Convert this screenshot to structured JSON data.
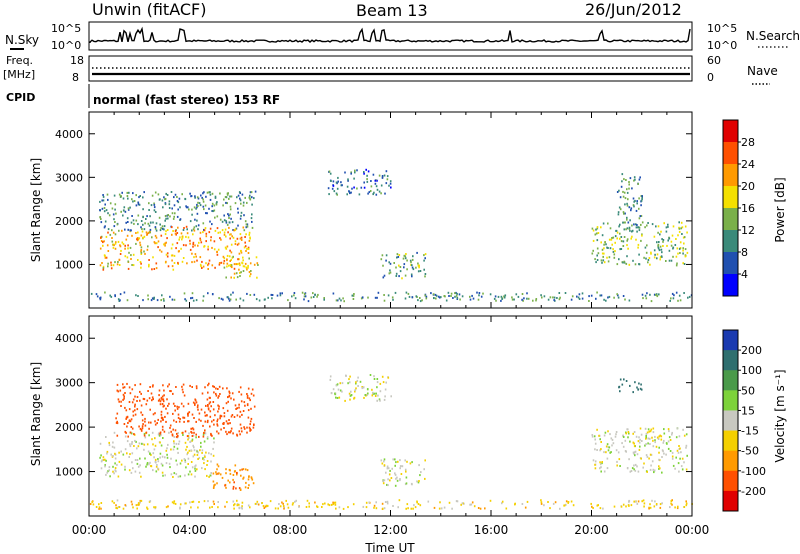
{
  "header": {
    "station": "Unwin (fitACF)",
    "beam": "Beam 13",
    "date": "26/Jun/2012"
  },
  "params": {
    "nsky_label": "N.Sky",
    "nsearch_label": "N.Search",
    "freq_label_1": "Freq.",
    "freq_label_2": "[MHz]",
    "cpid_label": "CPID",
    "nave_label": "Nave",
    "nsky_ticks": [
      "10^5",
      "10^0"
    ],
    "nsearch_ticks": [
      "10^5",
      "10^0"
    ],
    "freq_ticks": [
      "18",
      "8"
    ],
    "nave_ticks": [
      "60",
      "0"
    ],
    "mode_text": "normal (fast stereo) 153 RF"
  },
  "chart_data": [
    {
      "type": "heatmap",
      "panel": "power",
      "ylabel": "Slant Range [km]",
      "xlim": [
        "00:00",
        "24:00"
      ],
      "ylim": [
        0,
        4500
      ],
      "y_ticks": [
        "1000",
        "2000",
        "3000",
        "4000"
      ],
      "colorbar_label": "Power [dB]",
      "colorbar_ticks": [
        "28",
        "24",
        "20",
        "16",
        "12",
        "8",
        "4"
      ],
      "colorbar_colors": [
        "#e00000",
        "#ff5000",
        "#ff9a00",
        "#f4e000",
        "#7ab04a",
        "#3a8a7a",
        "#2050b0",
        "#0000ff"
      ],
      "echo_regions": [
        {
          "t": [
            0.4,
            3.0
          ],
          "range_km": [
            900,
            1800
          ],
          "level_db": 20
        },
        {
          "t": [
            0.4,
            6.6
          ],
          "range_km": [
            1800,
            2700
          ],
          "level_db": 10
        },
        {
          "t": [
            3.0,
            6.4
          ],
          "range_km": [
            900,
            1900
          ],
          "level_db": 22
        },
        {
          "t": [
            5.2,
            6.7
          ],
          "range_km": [
            700,
            1200
          ],
          "level_db": 18
        },
        {
          "t": [
            9.5,
            12.0
          ],
          "range_km": [
            2600,
            3200
          ],
          "level_db": 8
        },
        {
          "t": [
            11.6,
            13.4
          ],
          "range_km": [
            700,
            1300
          ],
          "level_db": 12
        },
        {
          "t": [
            20.0,
            23.8
          ],
          "range_km": [
            1000,
            2000
          ],
          "level_db": 14
        },
        {
          "t": [
            21.0,
            22.0
          ],
          "range_km": [
            1800,
            3100
          ],
          "level_db": 10
        },
        {
          "t": [
            0.0,
            24.0
          ],
          "range_km": [
            180,
            380
          ],
          "level_db": 10
        }
      ]
    },
    {
      "type": "heatmap",
      "panel": "velocity",
      "ylabel": "Slant Range [km]",
      "xlabel": "Time UT",
      "xlim": [
        "00:00",
        "24:00"
      ],
      "ylim": [
        0,
        4500
      ],
      "y_ticks": [
        "1000",
        "2000",
        "3000",
        "4000"
      ],
      "x_ticks": [
        "00:00",
        "04:00",
        "08:00",
        "12:00",
        "16:00",
        "20:00",
        "00:00"
      ],
      "colorbar_label": "Velocity [m s⁻¹]",
      "colorbar_ticks": [
        "200",
        "100",
        "50",
        "15",
        "-15",
        "-50",
        "-100",
        "-200"
      ],
      "colorbar_colors": [
        "#1a3ab0",
        "#2f6f6f",
        "#4a9a4a",
        "#7dd23a",
        "#c8c8c0",
        "#f4d000",
        "#ff9a00",
        "#ff5000",
        "#e00000"
      ],
      "echo_regions": [
        {
          "t": [
            0.4,
            5.0
          ],
          "range_km": [
            900,
            1900
          ],
          "vel_ms": 0
        },
        {
          "t": [
            1.0,
            6.6
          ],
          "range_km": [
            1800,
            3000
          ],
          "vel_ms": -150
        },
        {
          "t": [
            4.8,
            6.6
          ],
          "range_km": [
            600,
            1200
          ],
          "vel_ms": -80
        },
        {
          "t": [
            9.5,
            12.0
          ],
          "range_km": [
            2600,
            3200
          ],
          "vel_ms": 0
        },
        {
          "t": [
            11.6,
            13.4
          ],
          "range_km": [
            700,
            1300
          ],
          "vel_ms": 0
        },
        {
          "t": [
            20.0,
            23.8
          ],
          "range_km": [
            1000,
            2000
          ],
          "vel_ms": 0
        },
        {
          "t": [
            21.0,
            22.0
          ],
          "range_km": [
            2800,
            3100
          ],
          "vel_ms": 150
        },
        {
          "t": [
            0.0,
            24.0
          ],
          "range_km": [
            180,
            380
          ],
          "vel_ms": -30
        }
      ]
    }
  ]
}
